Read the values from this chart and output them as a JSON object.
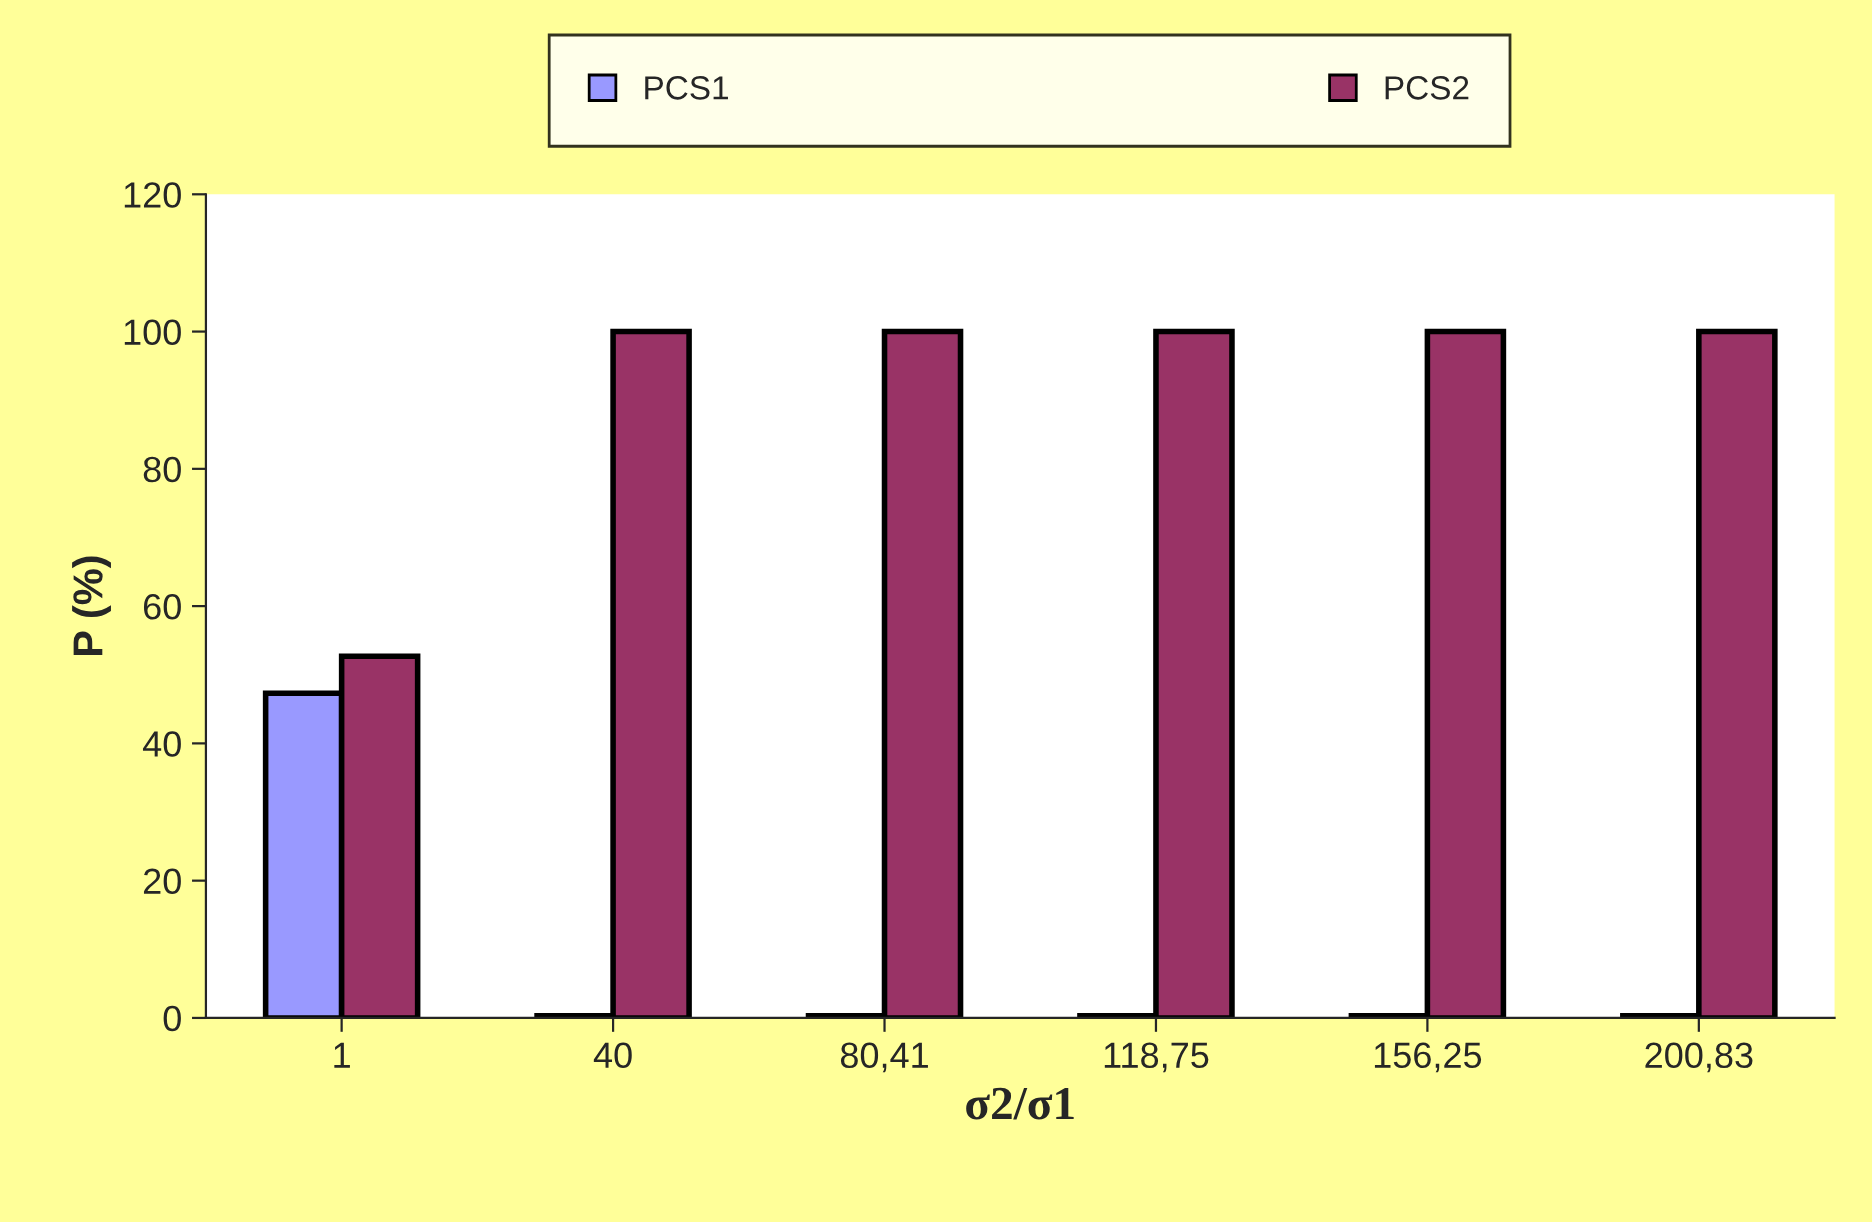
{
  "chart_data": {
    "type": "bar",
    "xlabel": "σ2/σ1",
    "ylabel": "P (%)",
    "categories": [
      "1",
      "40",
      "80,41",
      "118,75",
      "156,25",
      "200,83"
    ],
    "series": [
      {
        "name": "PCS1",
        "color": "#9999ff",
        "values": [
          47.3,
          0.3,
          0.3,
          0.3,
          0.3,
          0.3
        ]
      },
      {
        "name": "PCS2",
        "color": "#993366",
        "values": [
          52.7,
          100,
          100,
          100,
          100,
          100
        ]
      }
    ],
    "ylim": [
      0,
      120
    ],
    "yticks": [
      0,
      20,
      40,
      60,
      80,
      100,
      120
    ],
    "grid": false,
    "legend": "top"
  }
}
